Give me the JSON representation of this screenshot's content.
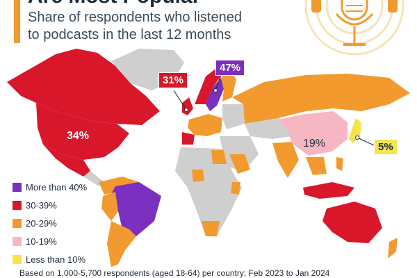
{
  "header": {
    "title": "Are Most Popular",
    "subtitle_line1": "Share of respondents who listened",
    "subtitle_line2": "to podcasts in the last 12 months"
  },
  "callouts": {
    "uk": "31%",
    "sweden": "47%",
    "usa": "34%",
    "china": "19%",
    "japan": "5%"
  },
  "legend": {
    "items": [
      {
        "label": "More than 40%",
        "color": "#7b2fbe"
      },
      {
        "label": "30-39%",
        "color": "#d9172b"
      },
      {
        "label": "20-29%",
        "color": "#f29a2e"
      },
      {
        "label": "10-19%",
        "color": "#f7b7c2"
      },
      {
        "label": "Less than 10%",
        "color": "#f7e34b"
      }
    ]
  },
  "colors": {
    "purple": "#7b2fbe",
    "red": "#d9172b",
    "orange": "#f29a2e",
    "pink": "#f7b7c2",
    "yellow": "#f7e34b",
    "nodata": "#cfcfcf"
  },
  "icons": {
    "podcast_mic": "microphone-icon"
  },
  "footer": {
    "text": "Based on 1,000-5,700 respondents (aged 18-64) per country; Feb 2023 to Jan 2024"
  }
}
